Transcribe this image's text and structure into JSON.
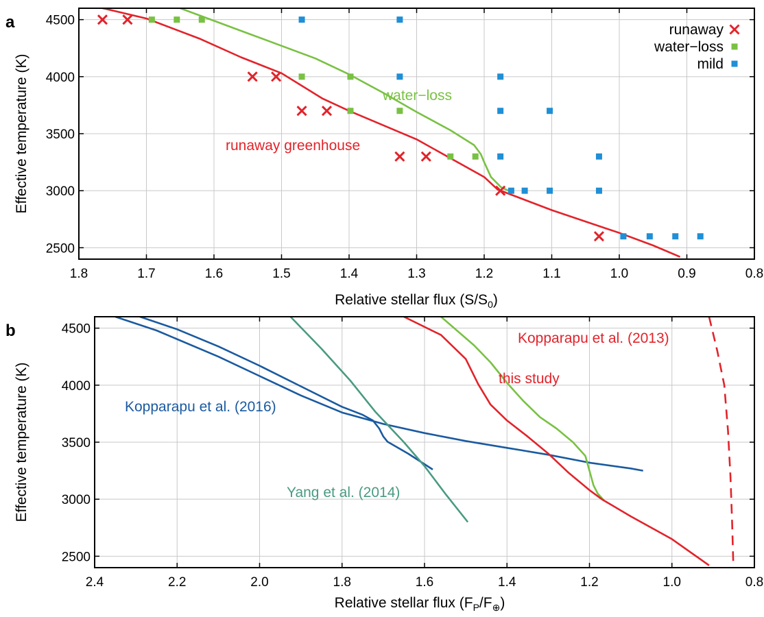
{
  "chart_data": [
    {
      "panel": "a",
      "type": "scatter",
      "xlabel": "Relative stellar flux (S/S",
      "xlabel_sub": "0",
      "xlabel_end": ")",
      "ylabel": "Effective temperature (K)",
      "xlim": [
        1.8,
        0.8
      ],
      "ylim": [
        2400,
        4600
      ],
      "x_ticks": [
        "1.8",
        "1.7",
        "1.6",
        "1.5",
        "1.4",
        "1.3",
        "1.2",
        "1.1",
        "1.0",
        "0.9",
        "0.8"
      ],
      "y_ticks": [
        "2500",
        "3000",
        "3500",
        "4000",
        "4500"
      ],
      "grid": true,
      "legend_position": "top-right",
      "legend": [
        {
          "name": "runaway",
          "color": "#e2232a",
          "marker": "x"
        },
        {
          "name": "water−loss",
          "color": "#79c143",
          "marker": "square"
        },
        {
          "name": "mild",
          "color": "#1f8fd6",
          "marker": "square"
        }
      ],
      "series": [
        {
          "name": "runaway",
          "marker": "x",
          "color": "#e2232a",
          "points": [
            [
              1.765,
              4500
            ],
            [
              1.728,
              4500
            ],
            [
              1.543,
              4000
            ],
            [
              1.508,
              4000
            ],
            [
              1.47,
              3700
            ],
            [
              1.433,
              3700
            ],
            [
              1.325,
              3300
            ],
            [
              1.286,
              3300
            ],
            [
              1.176,
              3000
            ],
            [
              1.03,
              2600
            ]
          ]
        },
        {
          "name": "water−loss",
          "marker": "square",
          "color": "#79c143",
          "points": [
            [
              1.692,
              4500
            ],
            [
              1.655,
              4500
            ],
            [
              1.618,
              4500
            ],
            [
              1.47,
              4000
            ],
            [
              1.398,
              4000
            ],
            [
              1.398,
              3700
            ],
            [
              1.325,
              3700
            ],
            [
              1.25,
              3300
            ],
            [
              1.213,
              3300
            ]
          ]
        },
        {
          "name": "mild",
          "marker": "square",
          "color": "#1f8fd6",
          "points": [
            [
              1.47,
              4500
            ],
            [
              1.325,
              4500
            ],
            [
              1.325,
              4000
            ],
            [
              1.176,
              4000
            ],
            [
              1.176,
              3700
            ],
            [
              1.103,
              3700
            ],
            [
              1.176,
              3300
            ],
            [
              1.03,
              3300
            ],
            [
              1.16,
              3000
            ],
            [
              1.14,
              3000
            ],
            [
              1.103,
              3000
            ],
            [
              1.03,
              3000
            ],
            [
              0.994,
              2600
            ],
            [
              0.955,
              2600
            ],
            [
              0.917,
              2600
            ],
            [
              0.88,
              2600
            ]
          ]
        }
      ],
      "curves": [
        {
          "name": "water-loss limit",
          "color": "#79c143",
          "points": [
            [
              1.65,
              4600
            ],
            [
              1.55,
              4380
            ],
            [
              1.45,
              4160
            ],
            [
              1.4,
              4020
            ],
            [
              1.35,
              3860
            ],
            [
              1.3,
              3690
            ],
            [
              1.25,
              3530
            ],
            [
              1.215,
              3400
            ],
            [
              1.205,
              3320
            ],
            [
              1.2,
              3250
            ],
            [
              1.19,
              3120
            ],
            [
              1.175,
              3030
            ],
            [
              1.16,
              2990
            ]
          ]
        },
        {
          "name": "runaway greenhouse limit",
          "color": "#e2232a",
          "points": [
            [
              1.8,
              4650
            ],
            [
              1.7,
              4510
            ],
            [
              1.62,
              4330
            ],
            [
              1.56,
              4170
            ],
            [
              1.5,
              4030
            ],
            [
              1.47,
              3920
            ],
            [
              1.44,
              3810
            ],
            [
              1.4,
              3700
            ],
            [
              1.3,
              3450
            ],
            [
              1.2,
              3120
            ],
            [
              1.18,
              3010
            ],
            [
              1.1,
              2830
            ],
            [
              1.0,
              2630
            ],
            [
              0.95,
              2520
            ],
            [
              0.91,
              2420
            ]
          ]
        }
      ],
      "annotations": [
        {
          "text": "water−loss",
          "color": "#79c143"
        },
        {
          "text": "runaway greenhouse",
          "color": "#e2232a"
        }
      ]
    },
    {
      "panel": "b",
      "type": "line",
      "xlabel": "Relative stellar flux (F",
      "xlabel_sub": "P",
      "xlabel_mid": "/F",
      "xlabel_sub2": "⊕",
      "xlabel_end": ")",
      "ylabel": "Effective temperature (K)",
      "xlim": [
        2.4,
        0.8
      ],
      "ylim": [
        2400,
        4600
      ],
      "x_ticks": [
        "2.4",
        "2.2",
        "2.0",
        "1.8",
        "1.6",
        "1.4",
        "1.2",
        "1.0",
        "0.8"
      ],
      "y_ticks": [
        "2500",
        "3000",
        "3500",
        "4000",
        "4500"
      ],
      "grid": true,
      "series": [
        {
          "name": "Kopparapu et al. (2016)",
          "color": "#1a5aa0",
          "points": [
            [
              2.29,
              4600
            ],
            [
              2.2,
              4490
            ],
            [
              2.1,
              4340
            ],
            [
              2.0,
              4170
            ],
            [
              1.9,
              3990
            ],
            [
              1.8,
              3810
            ],
            [
              1.75,
              3740
            ],
            [
              1.725,
              3690
            ],
            [
              1.71,
              3620
            ],
            [
              1.7,
              3550
            ],
            [
              1.69,
              3505
            ],
            [
              1.64,
              3400
            ],
            [
              1.58,
              3260
            ]
          ]
        },
        {
          "name": "Kopparapu et al. (2016) outer",
          "color": "#1a5aa0",
          "points": [
            [
              2.35,
              4600
            ],
            [
              2.25,
              4480
            ],
            [
              2.1,
              4250
            ],
            [
              2.0,
              4080
            ],
            [
              1.9,
              3910
            ],
            [
              1.8,
              3760
            ],
            [
              1.7,
              3660
            ],
            [
              1.6,
              3580
            ],
            [
              1.5,
              3510
            ],
            [
              1.4,
              3450
            ],
            [
              1.3,
              3390
            ],
            [
              1.2,
              3320
            ],
            [
              1.1,
              3270
            ],
            [
              1.07,
              3250
            ]
          ]
        },
        {
          "name": "Yang et al. (2014)",
          "color": "#4a9a82",
          "points": [
            [
              1.925,
              4600
            ],
            [
              1.85,
              4320
            ],
            [
              1.78,
              4040
            ],
            [
              1.72,
              3770
            ],
            [
              1.65,
              3500
            ],
            [
              1.6,
              3290
            ],
            [
              1.55,
              3050
            ],
            [
              1.495,
              2800
            ]
          ]
        },
        {
          "name": "this study",
          "color": "#79c143",
          "points": [
            [
              1.56,
              4600
            ],
            [
              1.48,
              4350
            ],
            [
              1.44,
              4200
            ],
            [
              1.4,
              4020
            ],
            [
              1.36,
              3860
            ],
            [
              1.32,
              3720
            ],
            [
              1.28,
              3620
            ],
            [
              1.24,
              3500
            ],
            [
              1.21,
              3380
            ],
            [
              1.2,
              3250
            ],
            [
              1.19,
              3120
            ],
            [
              1.18,
              3050
            ],
            [
              1.165,
              2990
            ]
          ]
        },
        {
          "name": "this study runaway",
          "color": "#e2232a",
          "points": [
            [
              1.65,
              4600
            ],
            [
              1.56,
              4440
            ],
            [
              1.5,
              4230
            ],
            [
              1.47,
              4010
            ],
            [
              1.44,
              3830
            ],
            [
              1.4,
              3690
            ],
            [
              1.35,
              3550
            ],
            [
              1.3,
              3400
            ],
            [
              1.25,
              3230
            ],
            [
              1.2,
              3080
            ],
            [
              1.17,
              3000
            ],
            [
              1.1,
              2850
            ],
            [
              1.0,
              2650
            ],
            [
              0.91,
              2420
            ]
          ]
        },
        {
          "name": "Kopparapu et al. (2013)",
          "color": "#e2232a",
          "dashed": true,
          "points": [
            [
              0.91,
              4600
            ],
            [
              0.89,
              4300
            ],
            [
              0.873,
              4000
            ],
            [
              0.864,
              3600
            ],
            [
              0.858,
              3200
            ],
            [
              0.854,
              2800
            ],
            [
              0.851,
              2420
            ]
          ]
        }
      ],
      "annotations": [
        {
          "text": "Kopparapu et al. (2013)",
          "color": "#e2232a"
        },
        {
          "text": "this study",
          "color": "#e2232a"
        },
        {
          "text": "Kopparapu et al. (2016)",
          "color": "#1a5aa0"
        },
        {
          "text": "Yang et al. (2014)",
          "color": "#4a9a82"
        }
      ]
    }
  ]
}
